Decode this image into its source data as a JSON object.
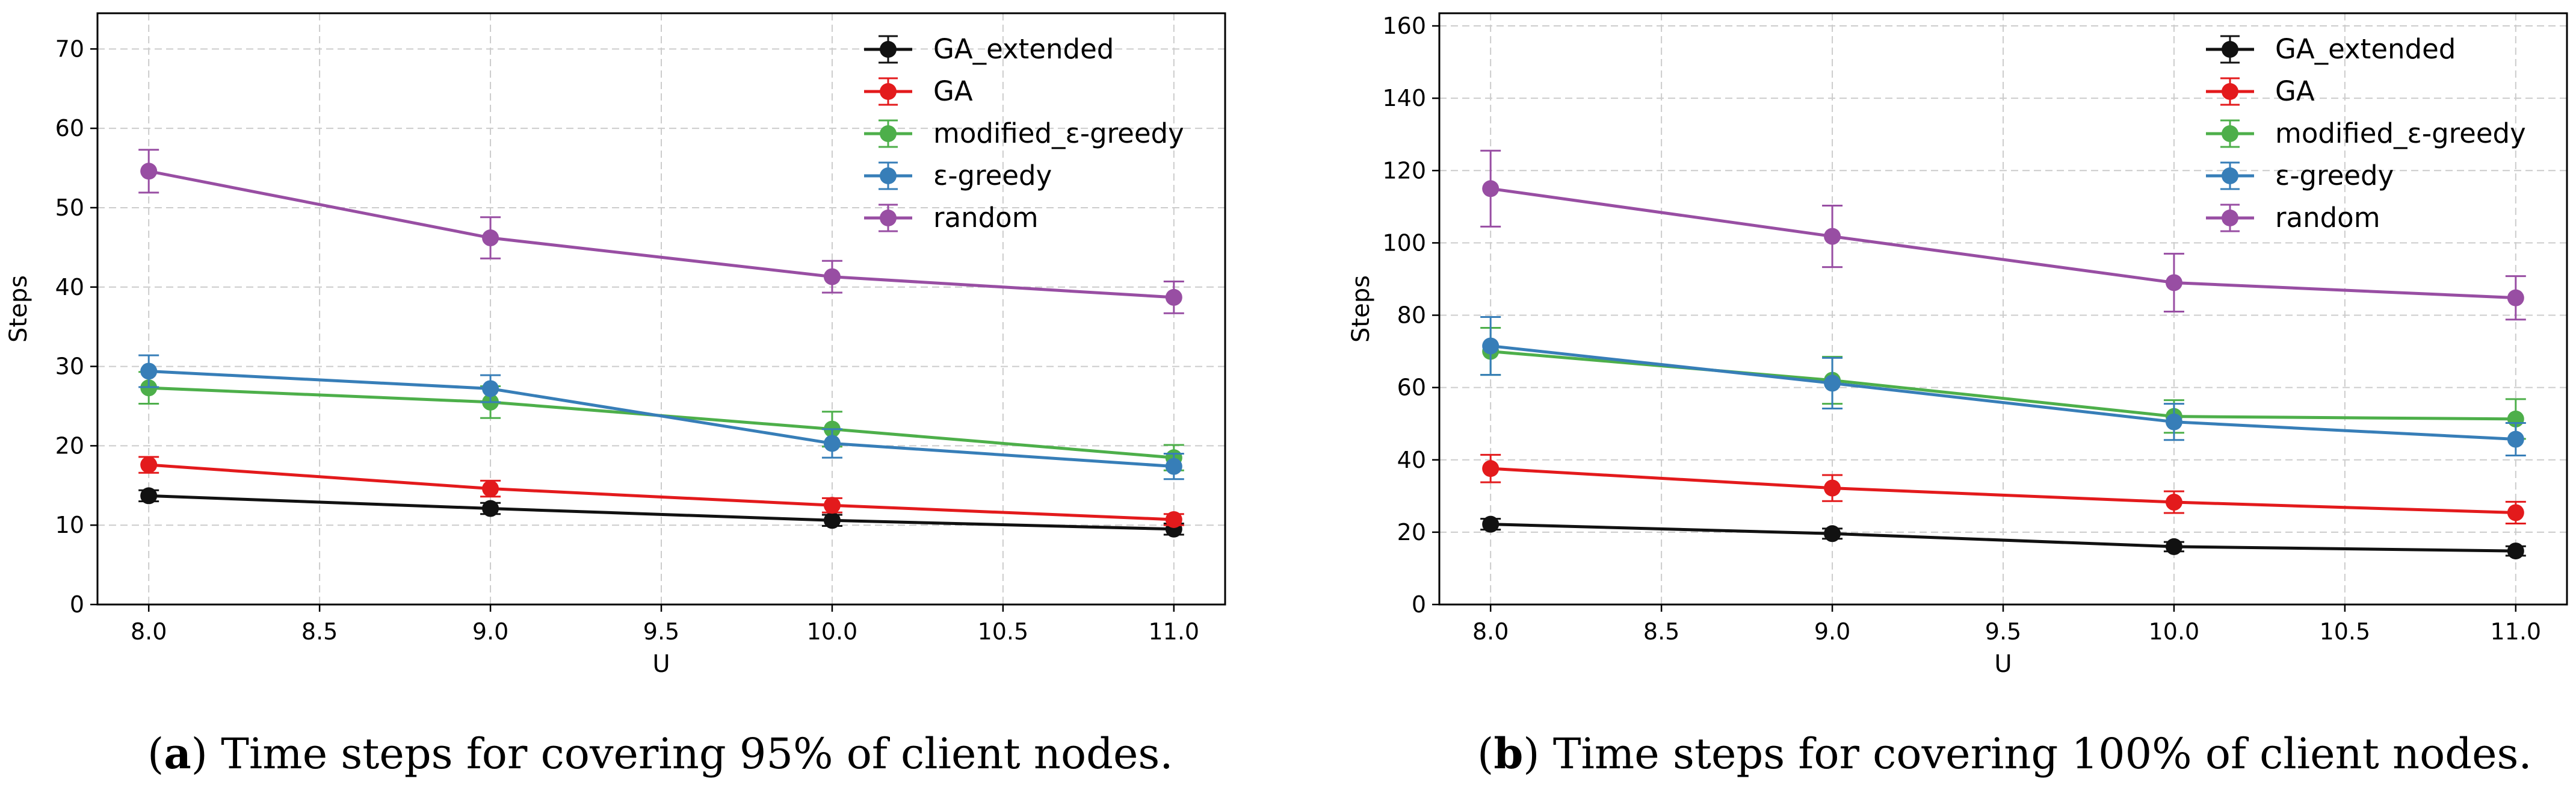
{
  "chart_data": [
    {
      "type": "line",
      "panel": "a",
      "xlabel": "U",
      "ylabel": "Steps",
      "xlim": [
        7.85,
        11.15
      ],
      "ylim": [
        0,
        74.5
      ],
      "xticks": [
        8.0,
        8.5,
        9.0,
        9.5,
        10.0,
        10.5,
        11.0
      ],
      "xtick_labels": [
        "8.0",
        "8.5",
        "9.0",
        "9.5",
        "10.0",
        "10.5",
        "11.0"
      ],
      "yticks": [
        0,
        10,
        20,
        30,
        40,
        50,
        60,
        70
      ],
      "ytick_labels": [
        "0",
        "10",
        "20",
        "30",
        "40",
        "50",
        "60",
        "70"
      ],
      "grid": true,
      "legend_position": "top-right",
      "x": [
        8.0,
        9.0,
        10.0,
        11.0
      ],
      "series": [
        {
          "name": "GA_extended",
          "color": "#111111",
          "values": [
            13.7,
            12.1,
            10.6,
            9.5
          ],
          "errors": [
            0.7,
            0.7,
            0.7,
            0.7
          ]
        },
        {
          "name": "GA",
          "color": "#e31a1c",
          "values": [
            17.6,
            14.6,
            12.5,
            10.7
          ],
          "errors": [
            1.0,
            1.0,
            0.9,
            0.7
          ]
        },
        {
          "name": "modified_ε-greedy",
          "color": "#4daf4a",
          "values": [
            27.3,
            25.5,
            22.1,
            18.5
          ],
          "errors": [
            2.0,
            2.0,
            2.2,
            1.6
          ]
        },
        {
          "name": "ε-greedy",
          "color": "#377eb8",
          "values": [
            29.4,
            27.2,
            20.3,
            17.4
          ],
          "errors": [
            2.0,
            1.7,
            1.8,
            1.6
          ]
        },
        {
          "name": "random",
          "color": "#984ea3",
          "values": [
            54.6,
            46.2,
            41.3,
            38.7
          ],
          "errors": [
            2.7,
            2.6,
            2.0,
            2.0
          ]
        }
      ],
      "caption_label": "a",
      "caption_text": "Time steps for covering 95% of client nodes."
    },
    {
      "type": "line",
      "panel": "b",
      "xlabel": "U",
      "ylabel": "Steps",
      "xlim": [
        7.85,
        11.15
      ],
      "ylim": [
        0,
        163.5
      ],
      "xticks": [
        8.0,
        8.5,
        9.0,
        9.5,
        10.0,
        10.5,
        11.0
      ],
      "xtick_labels": [
        "8.0",
        "8.5",
        "9.0",
        "9.5",
        "10.0",
        "10.5",
        "11.0"
      ],
      "yticks": [
        0,
        20,
        40,
        60,
        80,
        100,
        120,
        140,
        160
      ],
      "ytick_labels": [
        "0",
        "20",
        "40",
        "60",
        "80",
        "100",
        "120",
        "140",
        "160"
      ],
      "grid": true,
      "legend_position": "top-right",
      "x": [
        8.0,
        9.0,
        10.0,
        11.0
      ],
      "series": [
        {
          "name": "GA_extended",
          "color": "#111111",
          "values": [
            22.2,
            19.6,
            16.0,
            14.8
          ],
          "errors": [
            1.5,
            1.4,
            1.3,
            1.3
          ]
        },
        {
          "name": "GA",
          "color": "#e31a1c",
          "values": [
            37.6,
            32.2,
            28.3,
            25.4
          ],
          "errors": [
            3.8,
            3.6,
            3.0,
            3.0
          ]
        },
        {
          "name": "modified_ε-greedy",
          "color": "#4daf4a",
          "values": [
            70.0,
            62.0,
            52.0,
            51.3
          ],
          "errors": [
            6.5,
            6.5,
            4.5,
            5.5
          ]
        },
        {
          "name": "ε-greedy",
          "color": "#377eb8",
          "values": [
            71.5,
            61.2,
            50.5,
            45.7
          ],
          "errors": [
            8.0,
            7.0,
            5.0,
            4.5
          ]
        },
        {
          "name": "random",
          "color": "#984ea3",
          "values": [
            115.0,
            101.8,
            89.0,
            84.8
          ],
          "errors": [
            10.5,
            8.5,
            8.0,
            6.0
          ]
        }
      ],
      "caption_label": "b",
      "caption_text": "Time steps for covering 100% of client nodes."
    }
  ]
}
